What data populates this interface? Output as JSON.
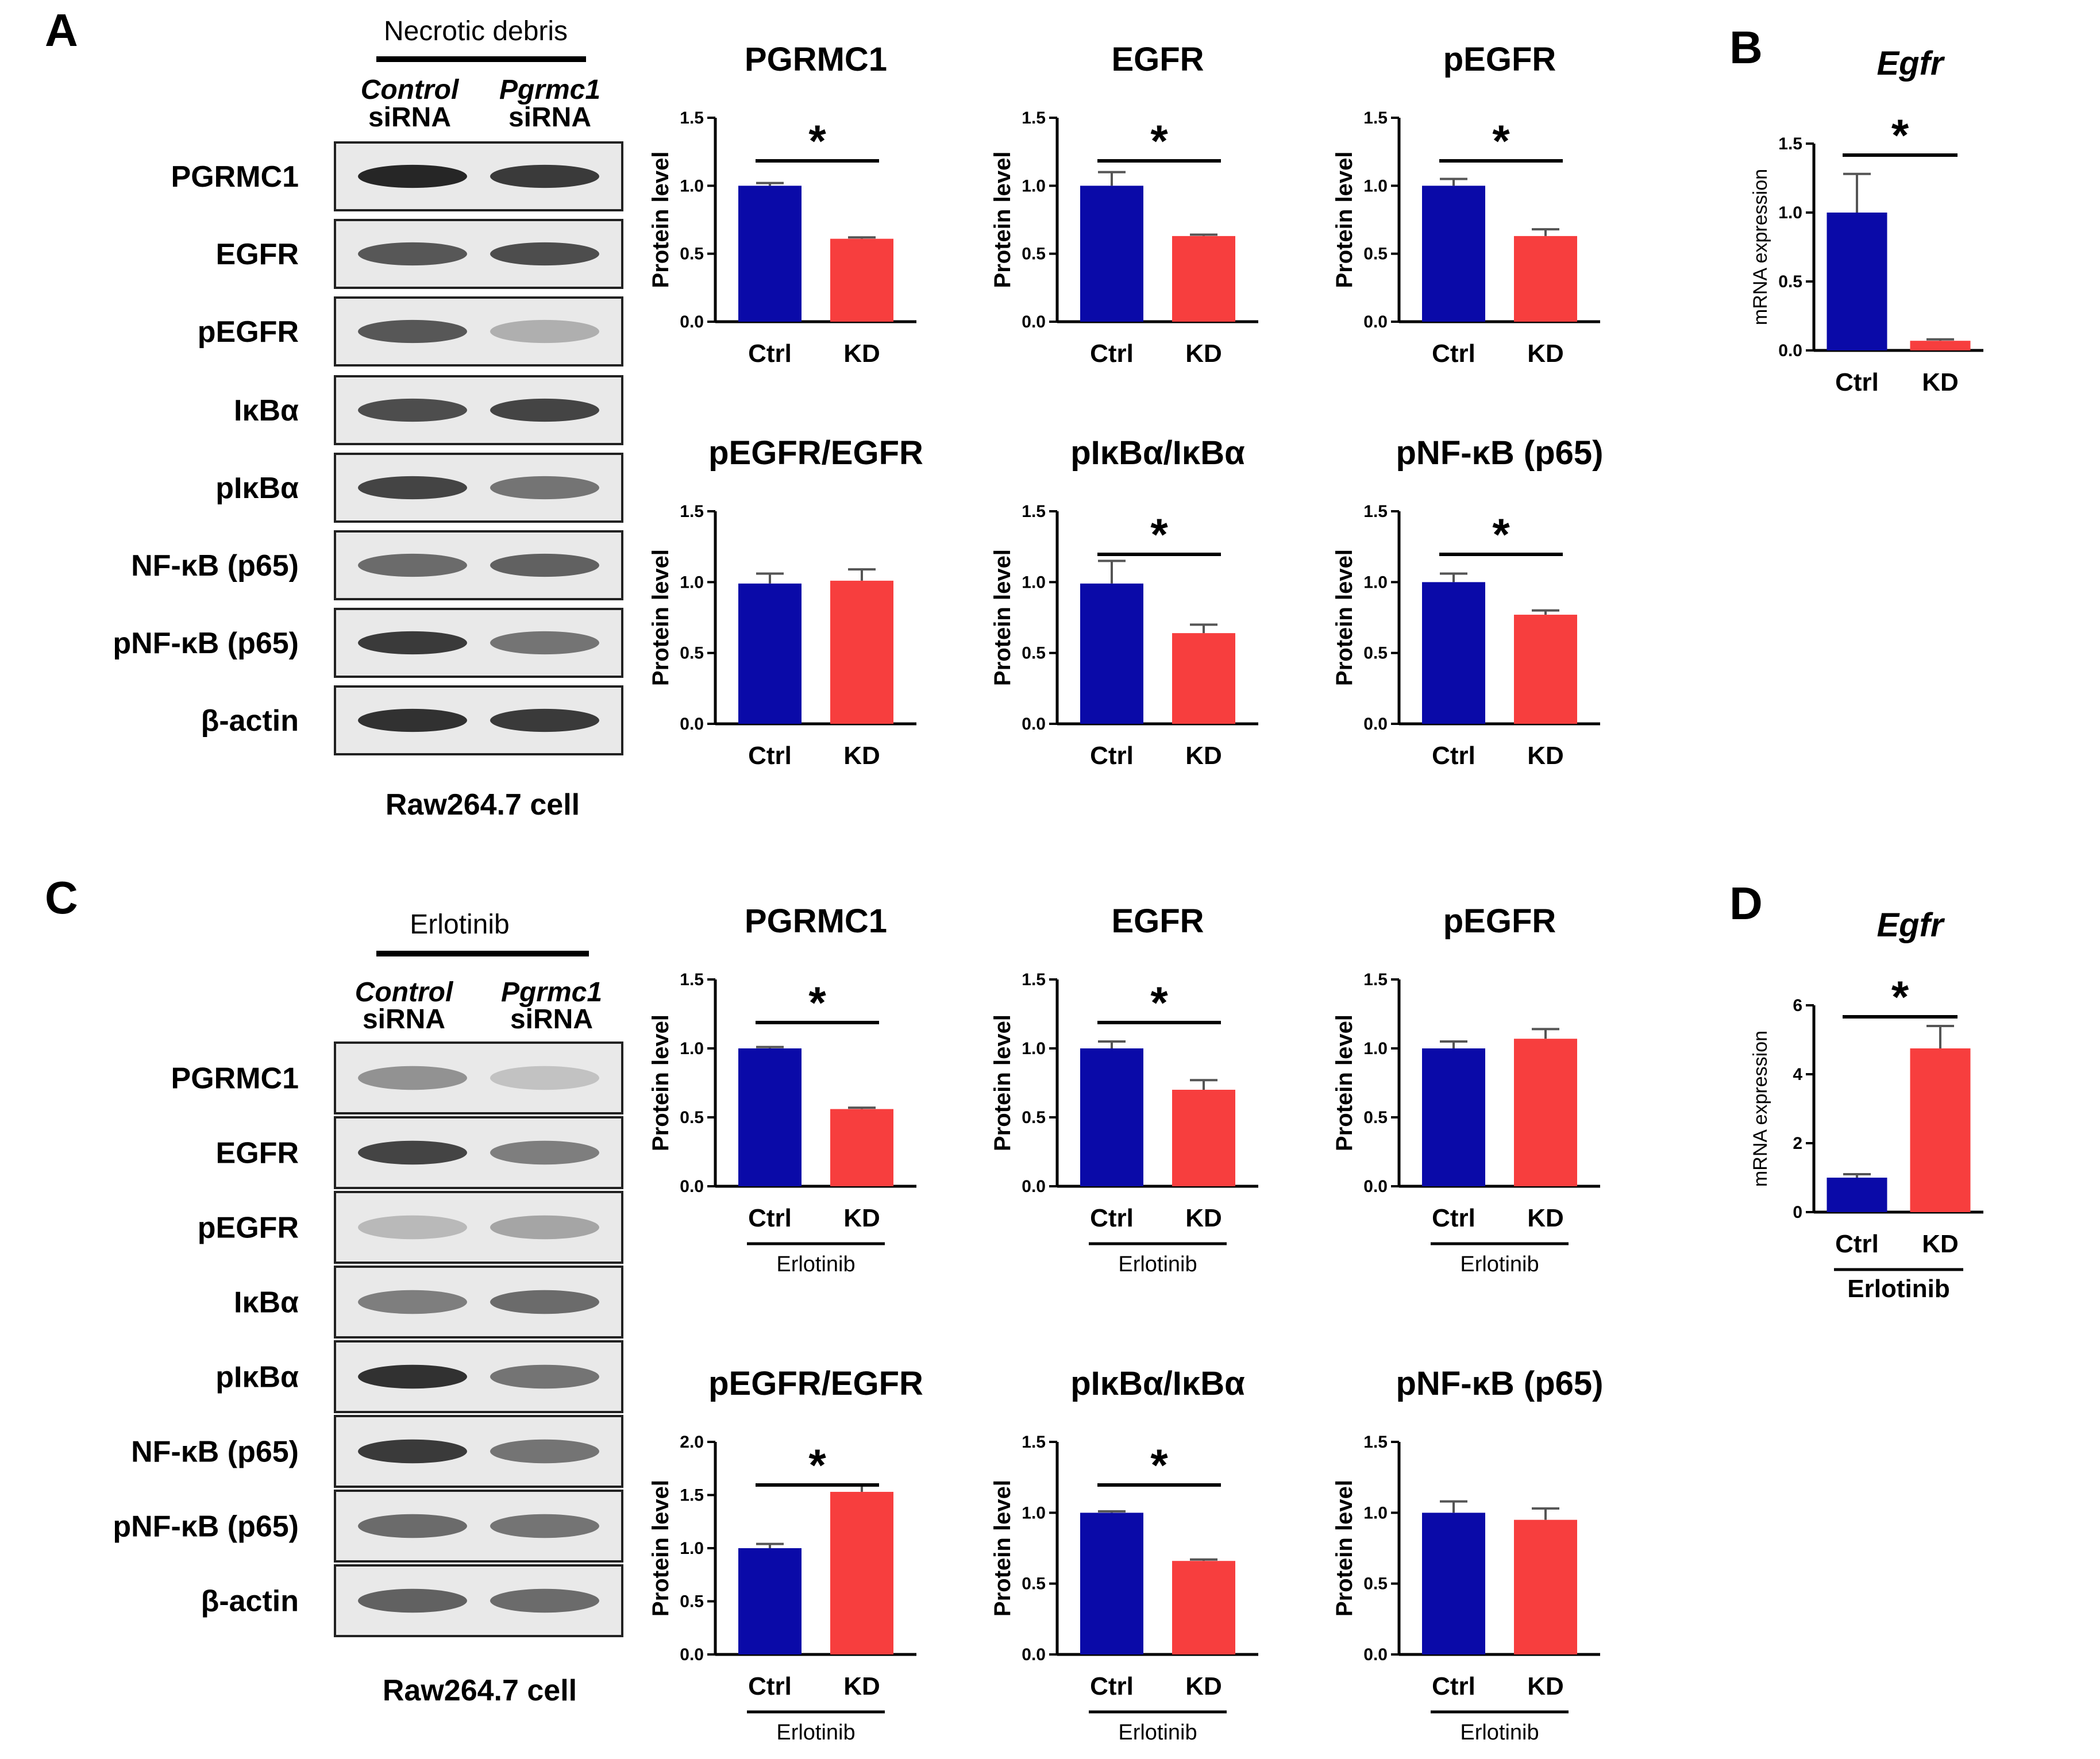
{
  "panels": {
    "A": {
      "letter": "A",
      "treatment": "Necrotic debris",
      "group1": {
        "line1": "Control",
        "line2": "siRNA"
      },
      "group2": {
        "line1": "Pgrmc1",
        "line2": "siRNA"
      },
      "blot_labels": [
        "PGRMC1",
        "EGFR",
        "pEGFR",
        "IκBα",
        "pIκBα",
        "NF-κB (p65)",
        "pNF-κB (p65)",
        "β-actin"
      ],
      "caption": "Raw264.7 cell"
    },
    "B": {
      "letter": "B"
    },
    "C": {
      "letter": "C",
      "treatment": "Erlotinib",
      "group1": {
        "line1": "Control",
        "line2": "siRNA"
      },
      "group2": {
        "line1": "Pgrmc1",
        "line2": "siRNA"
      },
      "blot_labels": [
        "PGRMC1",
        "EGFR",
        "pEGFR",
        "IκBα",
        "pIκBα",
        "NF-κB (p65)",
        "pNF-κB (p65)",
        "β-actin"
      ],
      "caption": "Raw264.7 cell"
    },
    "D": {
      "letter": "D"
    }
  },
  "colors": {
    "ctrl": "#0a0aa8",
    "kd": "#f73e3e",
    "band": "#111111",
    "blot_bg": "#e9e9e9"
  },
  "chart_data": [
    {
      "id": "A1",
      "type": "bar",
      "title": "PGRMC1",
      "ylabel": "Protein level",
      "categories": [
        "Ctrl",
        "KD"
      ],
      "values": [
        1.0,
        0.61
      ],
      "errors": [
        0.02,
        0.01
      ],
      "ylim": [
        0,
        1.5
      ],
      "yticks": [
        "0.0",
        "0.5",
        "1.0",
        "1.5"
      ],
      "significance": "*",
      "group_label": ""
    },
    {
      "id": "A2",
      "type": "bar",
      "title": "EGFR",
      "ylabel": "Protein level",
      "categories": [
        "Ctrl",
        "KD"
      ],
      "values": [
        1.0,
        0.63
      ],
      "errors": [
        0.1,
        0.01
      ],
      "ylim": [
        0,
        1.5
      ],
      "yticks": [
        "0.0",
        "0.5",
        "1.0",
        "1.5"
      ],
      "significance": "*",
      "group_label": ""
    },
    {
      "id": "A3",
      "type": "bar",
      "title": "pEGFR",
      "ylabel": "Protein level",
      "categories": [
        "Ctrl",
        "KD"
      ],
      "values": [
        1.0,
        0.63
      ],
      "errors": [
        0.05,
        0.05
      ],
      "ylim": [
        0,
        1.5
      ],
      "yticks": [
        "0.0",
        "0.5",
        "1.0",
        "1.5"
      ],
      "significance": "*",
      "group_label": ""
    },
    {
      "id": "A4",
      "type": "bar",
      "title": "pEGFR/EGFR",
      "ylabel": "Protein level",
      "categories": [
        "Ctrl",
        "KD"
      ],
      "values": [
        0.99,
        1.01
      ],
      "errors": [
        0.07,
        0.08
      ],
      "ylim": [
        0,
        1.5
      ],
      "yticks": [
        "0.0",
        "0.5",
        "1.0",
        "1.5"
      ],
      "significance": "",
      "group_label": ""
    },
    {
      "id": "A5",
      "type": "bar",
      "title": "pIκBα/IκBα",
      "ylabel": "Protein level",
      "categories": [
        "Ctrl",
        "KD"
      ],
      "values": [
        0.99,
        0.64
      ],
      "errors": [
        0.16,
        0.06
      ],
      "ylim": [
        0,
        1.5
      ],
      "yticks": [
        "0.0",
        "0.5",
        "1.0",
        "1.5"
      ],
      "significance": "*",
      "group_label": ""
    },
    {
      "id": "A6",
      "type": "bar",
      "title": "pNF-κB (p65)",
      "ylabel": "Protein level",
      "categories": [
        "Ctrl",
        "KD"
      ],
      "values": [
        1.0,
        0.77
      ],
      "errors": [
        0.06,
        0.03
      ],
      "ylim": [
        0,
        1.5
      ],
      "yticks": [
        "0.0",
        "0.5",
        "1.0",
        "1.5"
      ],
      "significance": "*",
      "group_label": ""
    },
    {
      "id": "B",
      "type": "bar",
      "title": "Egfr",
      "ylabel": "mRNA expression",
      "categories": [
        "Ctrl",
        "KD"
      ],
      "values": [
        1.0,
        0.07
      ],
      "errors": [
        0.28,
        0.01
      ],
      "ylim": [
        0,
        1.5
      ],
      "yticks": [
        "0.0",
        "0.5",
        "1.0",
        "1.5"
      ],
      "significance": "*",
      "group_label": ""
    },
    {
      "id": "C1",
      "type": "bar",
      "title": "PGRMC1",
      "ylabel": "Protein level",
      "categories": [
        "Ctrl",
        "KD"
      ],
      "values": [
        1.0,
        0.56
      ],
      "errors": [
        0.01,
        0.01
      ],
      "ylim": [
        0,
        1.5
      ],
      "yticks": [
        "0.0",
        "0.5",
        "1.0",
        "1.5"
      ],
      "significance": "*",
      "group_label": "Erlotinib"
    },
    {
      "id": "C2",
      "type": "bar",
      "title": "EGFR",
      "ylabel": "Protein level",
      "categories": [
        "Ctrl",
        "KD"
      ],
      "values": [
        1.0,
        0.7
      ],
      "errors": [
        0.05,
        0.07
      ],
      "ylim": [
        0,
        1.5
      ],
      "yticks": [
        "0.0",
        "0.5",
        "1.0",
        "1.5"
      ],
      "significance": "*",
      "group_label": "Erlotinib"
    },
    {
      "id": "C3",
      "type": "bar",
      "title": "pEGFR",
      "ylabel": "Protein level",
      "categories": [
        "Ctrl",
        "KD"
      ],
      "values": [
        1.0,
        1.07
      ],
      "errors": [
        0.05,
        0.07
      ],
      "ylim": [
        0,
        1.5
      ],
      "yticks": [
        "0.0",
        "0.5",
        "1.0",
        "1.5"
      ],
      "significance": "",
      "group_label": "Erlotinib"
    },
    {
      "id": "C4",
      "type": "bar",
      "title": "pEGFR/EGFR",
      "ylabel": "Protein level",
      "categories": [
        "Ctrl",
        "KD"
      ],
      "values": [
        1.0,
        1.53
      ],
      "errors": [
        0.04,
        0.07
      ],
      "ylim": [
        0,
        2.0
      ],
      "yticks": [
        "0.0",
        "0.5",
        "1.0",
        "1.5",
        "2.0"
      ],
      "significance": "*",
      "group_label": "Erlotinib"
    },
    {
      "id": "C5",
      "type": "bar",
      "title": "pIκBα/IκBα",
      "ylabel": "Protein level",
      "categories": [
        "Ctrl",
        "KD"
      ],
      "values": [
        1.0,
        0.66
      ],
      "errors": [
        0.01,
        0.01
      ],
      "ylim": [
        0,
        1.5
      ],
      "yticks": [
        "0.0",
        "0.5",
        "1.0",
        "1.5"
      ],
      "significance": "*",
      "group_label": "Erlotinib"
    },
    {
      "id": "C6",
      "type": "bar",
      "title": "pNF-κB (p65)",
      "ylabel": "Protein level",
      "categories": [
        "Ctrl",
        "KD"
      ],
      "values": [
        1.0,
        0.95
      ],
      "errors": [
        0.08,
        0.08
      ],
      "ylim": [
        0,
        1.5
      ],
      "yticks": [
        "0.0",
        "0.5",
        "1.0",
        "1.5"
      ],
      "significance": "",
      "group_label": "Erlotinib"
    },
    {
      "id": "D",
      "type": "bar",
      "title": "Egfr",
      "ylabel": "mRNA expression",
      "categories": [
        "Ctrl",
        "KD"
      ],
      "values": [
        1.0,
        4.75
      ],
      "errors": [
        0.1,
        0.65
      ],
      "ylim": [
        0,
        6
      ],
      "yticks": [
        "0",
        "2",
        "4",
        "6"
      ],
      "significance": "*",
      "group_label": "Erlotinib"
    }
  ]
}
